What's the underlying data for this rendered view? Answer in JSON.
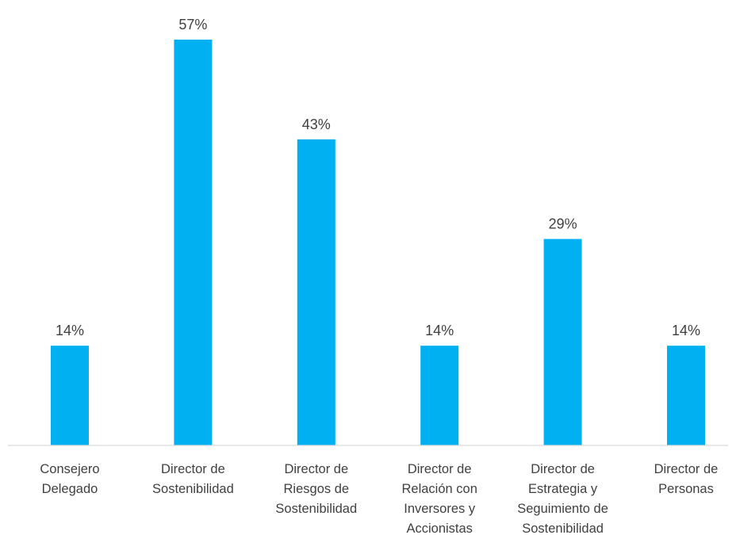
{
  "chart_data": {
    "type": "bar",
    "categories": [
      [
        "Consejero",
        "Delegado"
      ],
      [
        "Director de",
        "Sostenibilidad"
      ],
      [
        "Director de",
        "Riesgos de",
        "Sostenibilidad"
      ],
      [
        "Director de",
        "Relación con",
        "Inversores y",
        "Accionistas"
      ],
      [
        "Director de",
        "Estrategia y",
        "Seguimiento de",
        "Sostenibilidad"
      ],
      [
        "Director de",
        "Personas"
      ]
    ],
    "values": [
      14,
      57,
      43,
      14,
      29,
      14
    ],
    "data_labels": [
      "14%",
      "57%",
      "43%",
      "14%",
      "29%",
      "14%"
    ],
    "ylim": [
      0,
      57
    ],
    "grid": false,
    "colors": {
      "bar": "#00B0F0",
      "axis": "#D9D9D9",
      "text": "#404040"
    }
  }
}
